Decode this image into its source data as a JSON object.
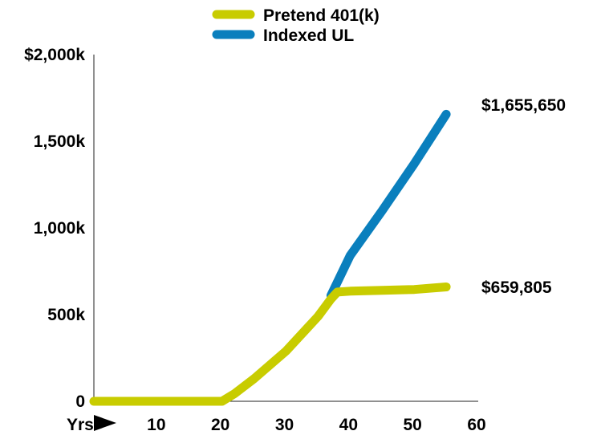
{
  "chart_data": {
    "type": "line",
    "title": "",
    "xlabel": "Yrs",
    "ylabel": "",
    "x_ticks": [
      10,
      20,
      30,
      40,
      50,
      60
    ],
    "x_tick_labels": [
      "10",
      "20",
      "30",
      "40",
      "50",
      "60"
    ],
    "y_ticks": [
      0,
      500000,
      1000000,
      1500000,
      2000000
    ],
    "y_tick_labels": [
      "0",
      "500k",
      "1,000k",
      "1,500k",
      "$2,000k"
    ],
    "xlim": [
      0,
      60
    ],
    "ylim": [
      0,
      2000000
    ],
    "grid": false,
    "legend_position": "top",
    "series": [
      {
        "name": "Indexed UL",
        "color": "#0a7fbd",
        "x": [
          37,
          40,
          45,
          50,
          55
        ],
        "y": [
          610000,
          840000,
          1100000,
          1370000,
          1655650
        ]
      },
      {
        "name": "Pretend 401(k)",
        "color": "#c8cc00",
        "x": [
          0,
          5,
          10,
          15,
          19,
          20,
          22,
          25,
          30,
          35,
          37,
          38,
          40,
          45,
          50,
          55
        ],
        "y": [
          0,
          0,
          0,
          0,
          0,
          0,
          45000,
          130000,
          290000,
          490000,
          590000,
          630000,
          635000,
          640000,
          645000,
          659805
        ]
      }
    ],
    "end_labels": [
      "$1,655,650",
      "$659,805"
    ]
  }
}
